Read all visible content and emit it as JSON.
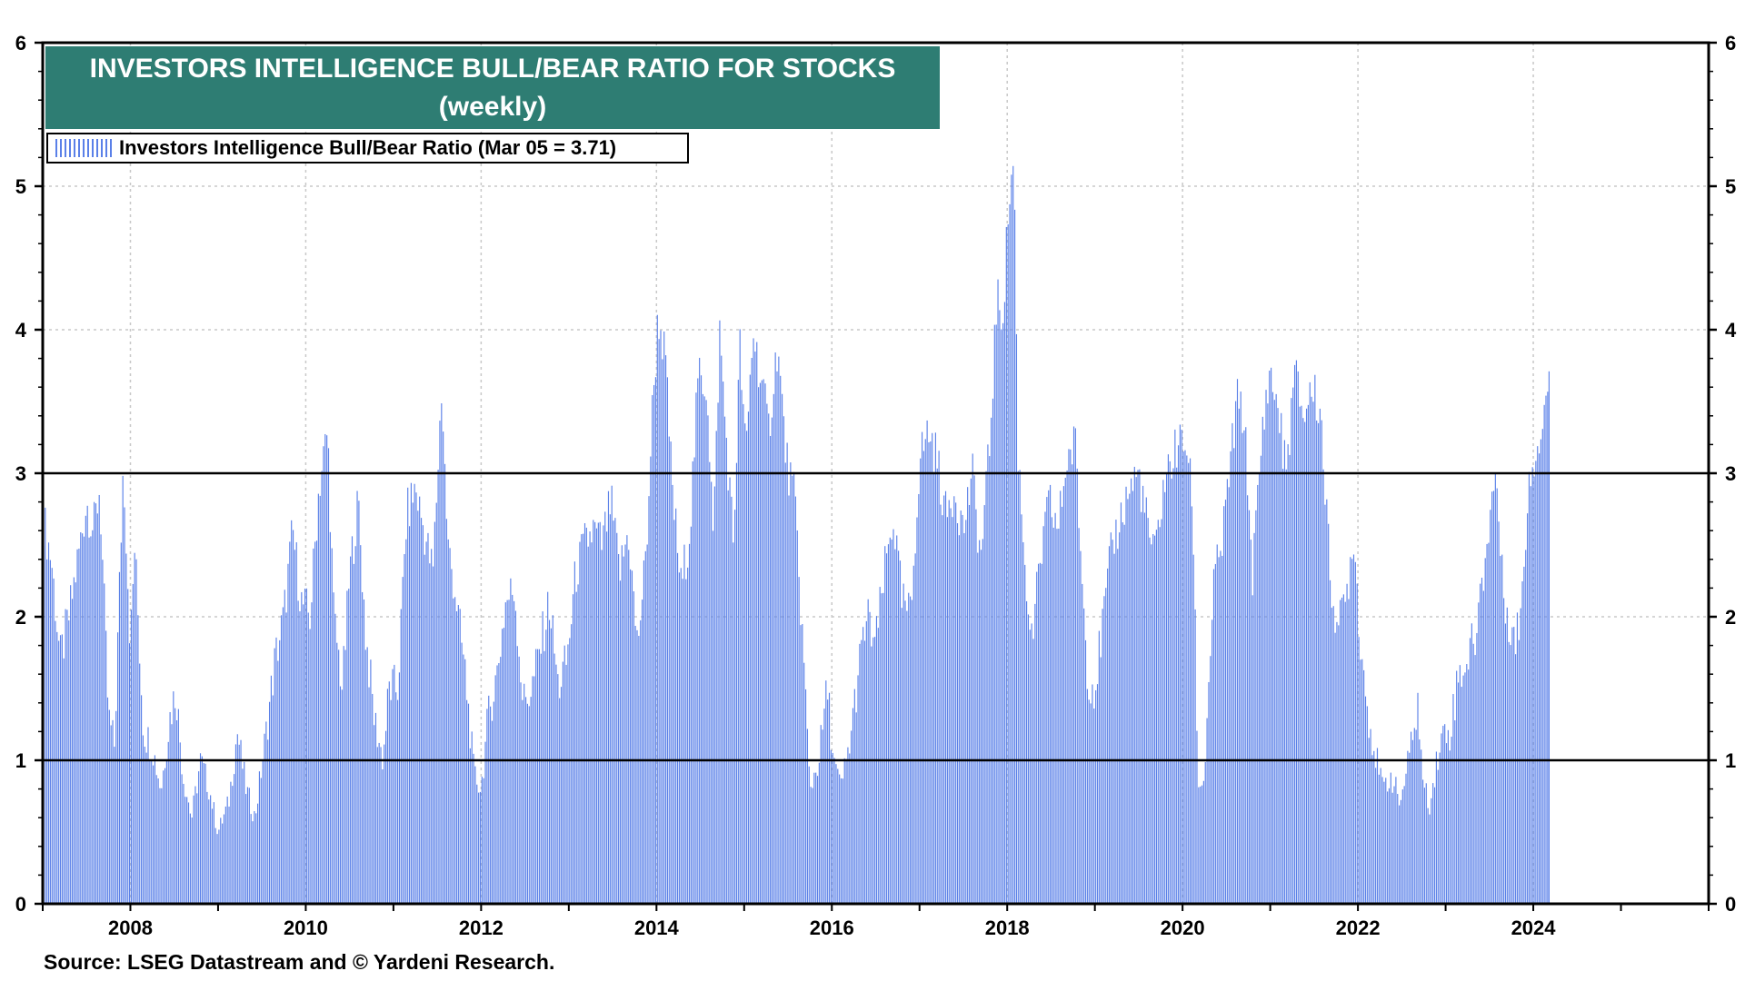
{
  "title": "INVESTORS INTELLIGENCE BULL/BEAR RATIO FOR STOCKS",
  "subtitle": "(weekly)",
  "legend": "Investors Intelligence Bull/Bear Ratio (Mar 05 = 3.71)",
  "source": "Source: LSEG Datastream and © Yardeni Research.",
  "colors": {
    "bars": "#5a80e8",
    "title_bg": "#2e7d73",
    "grid": "#c8c8c8",
    "ref_lines": "#000000"
  },
  "chart_data": {
    "type": "bar",
    "frequency": "weekly",
    "xlim": [
      2007.0,
      2026.0
    ],
    "ylim": [
      0,
      6
    ],
    "y_ticks": [
      "0",
      "1",
      "2",
      "3",
      "4",
      "5",
      "6"
    ],
    "x_ticks": [
      "2008",
      "2010",
      "2012",
      "2014",
      "2016",
      "2018",
      "2020",
      "2022",
      "2024"
    ],
    "reference_lines": [
      1,
      3
    ],
    "grid": true,
    "legend_position": "top-left",
    "last_value": {
      "date": "Mar 05",
      "value": 3.71
    },
    "series": [
      {
        "name": "Investors Intelligence Bull/Bear Ratio",
        "anchors": [
          [
            2007.0,
            2.7
          ],
          [
            2007.1,
            2.4
          ],
          [
            2007.2,
            1.7
          ],
          [
            2007.3,
            2.0
          ],
          [
            2007.4,
            2.4
          ],
          [
            2007.5,
            2.8
          ],
          [
            2007.58,
            2.6
          ],
          [
            2007.65,
            2.9
          ],
          [
            2007.75,
            1.3
          ],
          [
            2007.82,
            1.1
          ],
          [
            2007.92,
            3.1
          ],
          [
            2008.0,
            1.8
          ],
          [
            2008.05,
            2.5
          ],
          [
            2008.15,
            1.2
          ],
          [
            2008.25,
            1.1
          ],
          [
            2008.35,
            0.8
          ],
          [
            2008.45,
            1.3
          ],
          [
            2008.52,
            1.5
          ],
          [
            2008.6,
            0.9
          ],
          [
            2008.7,
            0.6
          ],
          [
            2008.8,
            1.0
          ],
          [
            2008.9,
            0.8
          ],
          [
            2009.0,
            0.5
          ],
          [
            2009.12,
            0.7
          ],
          [
            2009.22,
            1.2
          ],
          [
            2009.32,
            0.8
          ],
          [
            2009.42,
            0.6
          ],
          [
            2009.55,
            1.2
          ],
          [
            2009.65,
            1.7
          ],
          [
            2009.75,
            2.0
          ],
          [
            2009.85,
            2.6
          ],
          [
            2009.95,
            2.1
          ],
          [
            2010.05,
            2.0
          ],
          [
            2010.15,
            2.9
          ],
          [
            2010.25,
            3.3
          ],
          [
            2010.32,
            2.0
          ],
          [
            2010.42,
            1.5
          ],
          [
            2010.5,
            2.3
          ],
          [
            2010.6,
            2.8
          ],
          [
            2010.68,
            1.9
          ],
          [
            2010.78,
            1.3
          ],
          [
            2010.88,
            1.0
          ],
          [
            2010.95,
            1.5
          ],
          [
            2011.05,
            1.5
          ],
          [
            2011.15,
            2.7
          ],
          [
            2011.25,
            2.9
          ],
          [
            2011.35,
            2.6
          ],
          [
            2011.45,
            2.3
          ],
          [
            2011.55,
            3.6
          ],
          [
            2011.62,
            2.5
          ],
          [
            2011.7,
            2.2
          ],
          [
            2011.82,
            1.6
          ],
          [
            2011.92,
            0.9
          ],
          [
            2012.0,
            0.8
          ],
          [
            2012.08,
            1.3
          ],
          [
            2012.18,
            1.6
          ],
          [
            2012.28,
            2.1
          ],
          [
            2012.38,
            2.2
          ],
          [
            2012.48,
            1.4
          ],
          [
            2012.58,
            1.5
          ],
          [
            2012.68,
            1.8
          ],
          [
            2012.78,
            2.1
          ],
          [
            2012.88,
            1.5
          ],
          [
            2012.98,
            1.7
          ],
          [
            2013.08,
            2.3
          ],
          [
            2013.18,
            2.5
          ],
          [
            2013.28,
            2.6
          ],
          [
            2013.38,
            2.5
          ],
          [
            2013.48,
            2.8
          ],
          [
            2013.58,
            2.3
          ],
          [
            2013.68,
            2.6
          ],
          [
            2013.78,
            1.8
          ],
          [
            2013.88,
            2.4
          ],
          [
            2013.95,
            3.4
          ],
          [
            2014.02,
            4.1
          ],
          [
            2014.1,
            3.8
          ],
          [
            2014.18,
            2.9
          ],
          [
            2014.28,
            2.2
          ],
          [
            2014.38,
            2.6
          ],
          [
            2014.48,
            3.7
          ],
          [
            2014.58,
            3.6
          ],
          [
            2014.65,
            2.5
          ],
          [
            2014.72,
            4.0
          ],
          [
            2014.8,
            3.2
          ],
          [
            2014.88,
            2.5
          ],
          [
            2014.95,
            3.9
          ],
          [
            2015.02,
            3.1
          ],
          [
            2015.1,
            4.0
          ],
          [
            2015.18,
            3.7
          ],
          [
            2015.28,
            3.3
          ],
          [
            2015.38,
            3.9
          ],
          [
            2015.48,
            3.1
          ],
          [
            2015.58,
            2.8
          ],
          [
            2015.68,
            1.7
          ],
          [
            2015.75,
            0.8
          ],
          [
            2015.85,
            1.0
          ],
          [
            2015.95,
            1.5
          ],
          [
            2016.02,
            1.0
          ],
          [
            2016.1,
            0.8
          ],
          [
            2016.2,
            1.1
          ],
          [
            2016.3,
            1.6
          ],
          [
            2016.4,
            2.0
          ],
          [
            2016.5,
            1.8
          ],
          [
            2016.6,
            2.3
          ],
          [
            2016.7,
            2.7
          ],
          [
            2016.8,
            2.1
          ],
          [
            2016.9,
            2.0
          ],
          [
            2017.0,
            3.1
          ],
          [
            2017.1,
            3.3
          ],
          [
            2017.2,
            3.1
          ],
          [
            2017.3,
            2.7
          ],
          [
            2017.4,
            2.9
          ],
          [
            2017.5,
            2.6
          ],
          [
            2017.6,
            3.0
          ],
          [
            2017.7,
            2.4
          ],
          [
            2017.8,
            3.2
          ],
          [
            2017.88,
            4.2
          ],
          [
            2017.95,
            4.1
          ],
          [
            2018.02,
            4.9
          ],
          [
            2018.08,
            5.2
          ],
          [
            2018.12,
            3.2
          ],
          [
            2018.2,
            2.4
          ],
          [
            2018.28,
            1.8
          ],
          [
            2018.38,
            2.4
          ],
          [
            2018.48,
            2.8
          ],
          [
            2018.58,
            2.6
          ],
          [
            2018.68,
            3.1
          ],
          [
            2018.78,
            3.2
          ],
          [
            2018.85,
            2.3
          ],
          [
            2018.92,
            1.6
          ],
          [
            2019.0,
            1.5
          ],
          [
            2019.1,
            2.0
          ],
          [
            2019.2,
            2.5
          ],
          [
            2019.3,
            2.7
          ],
          [
            2019.4,
            2.9
          ],
          [
            2019.5,
            3.0
          ],
          [
            2019.58,
            2.7
          ],
          [
            2019.68,
            2.4
          ],
          [
            2019.78,
            2.9
          ],
          [
            2019.88,
            3.1
          ],
          [
            2019.95,
            3.2
          ],
          [
            2020.05,
            3.2
          ],
          [
            2020.12,
            2.7
          ],
          [
            2020.18,
            0.8
          ],
          [
            2020.25,
            0.9
          ],
          [
            2020.35,
            2.2
          ],
          [
            2020.45,
            2.5
          ],
          [
            2020.55,
            3.1
          ],
          [
            2020.62,
            3.5
          ],
          [
            2020.7,
            3.4
          ],
          [
            2020.8,
            2.3
          ],
          [
            2020.9,
            3.2
          ],
          [
            2020.98,
            3.7
          ],
          [
            2021.08,
            3.5
          ],
          [
            2021.18,
            3.0
          ],
          [
            2021.28,
            3.7
          ],
          [
            2021.38,
            3.4
          ],
          [
            2021.48,
            3.6
          ],
          [
            2021.58,
            3.4
          ],
          [
            2021.68,
            2.3
          ],
          [
            2021.78,
            1.9
          ],
          [
            2021.88,
            2.2
          ],
          [
            2021.95,
            2.6
          ],
          [
            2022.02,
            1.9
          ],
          [
            2022.1,
            1.4
          ],
          [
            2022.18,
            1.1
          ],
          [
            2022.28,
            0.8
          ],
          [
            2022.38,
            0.9
          ],
          [
            2022.48,
            0.7
          ],
          [
            2022.58,
            1.0
          ],
          [
            2022.68,
            1.4
          ],
          [
            2022.75,
            0.8
          ],
          [
            2022.82,
            0.7
          ],
          [
            2022.9,
            1.0
          ],
          [
            2022.98,
            1.2
          ],
          [
            2023.05,
            1.2
          ],
          [
            2023.15,
            1.6
          ],
          [
            2023.25,
            1.7
          ],
          [
            2023.35,
            1.9
          ],
          [
            2023.45,
            2.4
          ],
          [
            2023.52,
            2.8
          ],
          [
            2023.58,
            3.0
          ],
          [
            2023.65,
            2.2
          ],
          [
            2023.72,
            2.0
          ],
          [
            2023.8,
            1.8
          ],
          [
            2023.88,
            2.2
          ],
          [
            2023.95,
            3.0
          ],
          [
            2024.05,
            3.2
          ],
          [
            2024.12,
            3.4
          ],
          [
            2024.18,
            3.71
          ]
        ]
      }
    ]
  }
}
